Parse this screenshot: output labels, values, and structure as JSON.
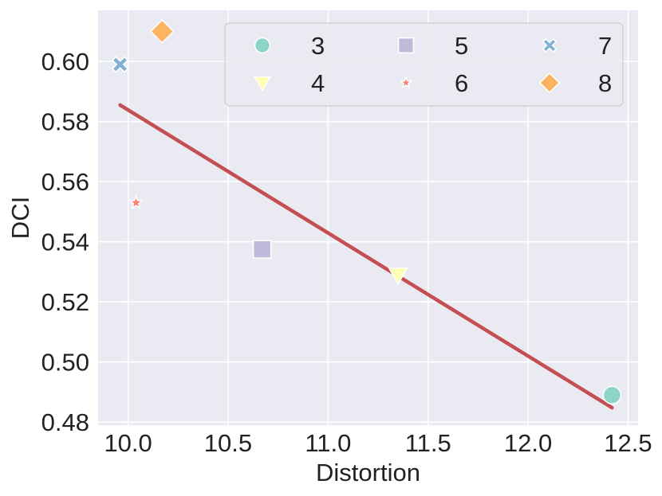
{
  "chart_data": {
    "type": "scatter",
    "title": "",
    "xlabel": "Distortion",
    "ylabel": "DCI",
    "xlim": [
      9.85,
      12.55
    ],
    "ylim": [
      0.479,
      0.617
    ],
    "xticks": [
      10.0,
      10.5,
      11.0,
      11.5,
      12.0,
      12.5
    ],
    "xtick_labels": [
      "10.0",
      "10.5",
      "11.0",
      "11.5",
      "12.0",
      "12.5"
    ],
    "yticks": [
      0.48,
      0.5,
      0.52,
      0.54,
      0.56,
      0.58,
      0.6
    ],
    "ytick_labels": [
      "0.48",
      "0.50",
      "0.52",
      "0.54",
      "0.56",
      "0.58",
      "0.60"
    ],
    "grid": true,
    "legend_position": "top-right",
    "series": [
      {
        "name": "3",
        "marker": "circle",
        "color": "#8dd3c7",
        "x": 12.42,
        "y": 0.489
      },
      {
        "name": "4",
        "marker": "triangle-down",
        "color": "#ffffb3",
        "x": 11.35,
        "y": 0.529
      },
      {
        "name": "5",
        "marker": "square",
        "color": "#bebada",
        "x": 10.67,
        "y": 0.5375
      },
      {
        "name": "6",
        "marker": "star",
        "color": "#fb8072",
        "x": 10.04,
        "y": 0.553
      },
      {
        "name": "7",
        "marker": "x",
        "color": "#80b1d3",
        "x": 9.96,
        "y": 0.599
      },
      {
        "name": "8",
        "marker": "diamond",
        "color": "#fdb462",
        "x": 10.17,
        "y": 0.61
      }
    ],
    "trend_line": {
      "color": "#c44e52",
      "x": [
        9.96,
        12.42
      ],
      "y": [
        0.5855,
        0.4848
      ]
    }
  },
  "colors": {
    "plot_background": "#eaeaf2",
    "grid": "#ffffff"
  }
}
